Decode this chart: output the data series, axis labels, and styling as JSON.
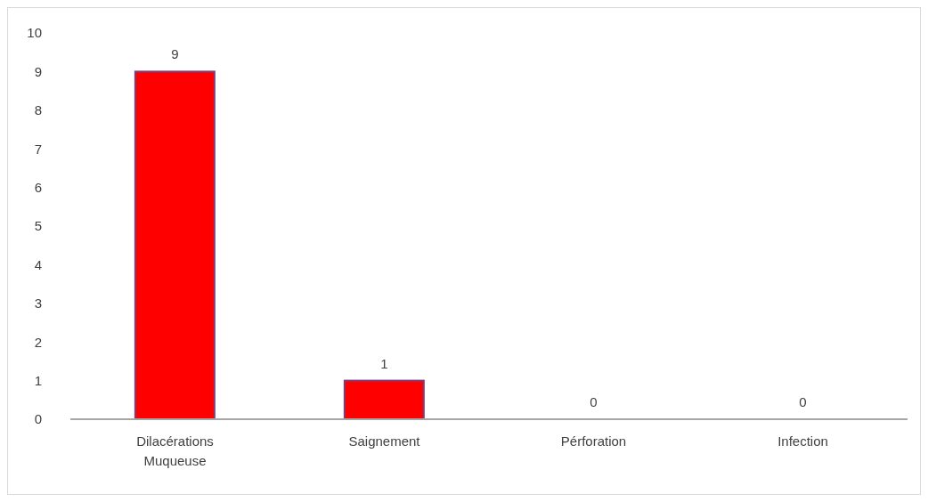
{
  "chart_data": {
    "type": "bar",
    "categories": [
      "Dilacérations Muqueuse",
      "Saignement",
      "Pérforation",
      "Infection"
    ],
    "values": [
      9,
      1,
      0,
      0
    ],
    "color": "#ff0000",
    "ylim": [
      0,
      10
    ],
    "yticks": [
      0,
      1,
      2,
      3,
      4,
      5,
      6,
      7,
      8,
      9,
      10
    ],
    "grid": false,
    "data_labels": true
  }
}
